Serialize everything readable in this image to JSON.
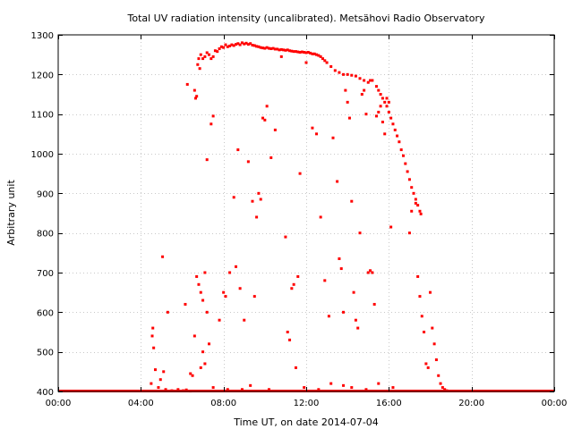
{
  "chart_data": {
    "type": "scatter",
    "title": "Total UV radiation intensity (uncalibrated). Metsähovi Radio Observatory",
    "xlabel": "Time UT, on date 2014-07-04",
    "ylabel": "Arbitrary unit",
    "xlim": [
      0,
      24
    ],
    "ylim": [
      400,
      1300
    ],
    "xticks": [
      0,
      4,
      8,
      12,
      16,
      20,
      24
    ],
    "xtick_labels": [
      "00:00",
      "04:00",
      "08:00",
      "12:00",
      "16:00",
      "20:00",
      "00:00"
    ],
    "yticks": [
      400,
      500,
      600,
      700,
      800,
      900,
      1000,
      1100,
      1200,
      1300
    ],
    "ytick_labels": [
      "400",
      "500",
      "600",
      "700",
      "800",
      "900",
      "1000",
      "1100",
      "1200",
      "1300"
    ],
    "grid": true,
    "color": "#ff0000",
    "series": [
      {
        "name": "",
        "baseline_value": 400,
        "points": [
          [
            4.55,
            540
          ],
          [
            4.58,
            560
          ],
          [
            4.62,
            510
          ],
          [
            4.7,
            455
          ],
          [
            4.95,
            430
          ],
          [
            5.05,
            740
          ],
          [
            5.1,
            450
          ],
          [
            5.3,
            600
          ],
          [
            4.5,
            420
          ],
          [
            4.85,
            410
          ],
          [
            5.2,
            405
          ],
          [
            5.5,
            402
          ],
          [
            5.8,
            405
          ],
          [
            6.05,
            402
          ],
          [
            6.2,
            404
          ],
          [
            6.4,
            401
          ],
          [
            6.15,
            620
          ],
          [
            6.25,
            1175
          ],
          [
            6.4,
            445
          ],
          [
            6.5,
            440
          ],
          [
            6.6,
            1160
          ],
          [
            6.65,
            1140
          ],
          [
            6.7,
            1145
          ],
          [
            6.75,
            1225
          ],
          [
            6.8,
            1240
          ],
          [
            6.85,
            1215
          ],
          [
            6.9,
            1250
          ],
          [
            7.0,
            1240
          ],
          [
            7.1,
            1245
          ],
          [
            7.2,
            1255
          ],
          [
            7.3,
            1250
          ],
          [
            7.4,
            1240
          ],
          [
            7.5,
            1245
          ],
          [
            7.6,
            1260
          ],
          [
            7.7,
            1258
          ],
          [
            7.8,
            1265
          ],
          [
            7.9,
            1270
          ],
          [
            8.0,
            1268
          ],
          [
            8.1,
            1275
          ],
          [
            8.2,
            1270
          ],
          [
            8.3,
            1272
          ],
          [
            8.4,
            1275
          ],
          [
            8.5,
            1273
          ],
          [
            8.6,
            1276
          ],
          [
            8.7,
            1278
          ],
          [
            8.8,
            1275
          ],
          [
            8.9,
            1280
          ],
          [
            9.0,
            1277
          ],
          [
            9.1,
            1279
          ],
          [
            9.2,
            1276
          ],
          [
            9.3,
            1278
          ],
          [
            9.4,
            1274
          ],
          [
            9.5,
            1273
          ],
          [
            9.6,
            1271
          ],
          [
            9.7,
            1270
          ],
          [
            9.8,
            1268
          ],
          [
            9.9,
            1267
          ],
          [
            10.0,
            1266
          ],
          [
            10.1,
            1268
          ],
          [
            10.2,
            1266
          ],
          [
            10.3,
            1265
          ],
          [
            10.4,
            1266
          ],
          [
            10.5,
            1264
          ],
          [
            10.6,
            1264
          ],
          [
            10.7,
            1262
          ],
          [
            10.8,
            1263
          ],
          [
            10.9,
            1262
          ],
          [
            11.0,
            1261
          ],
          [
            11.1,
            1262
          ],
          [
            11.2,
            1260
          ],
          [
            11.3,
            1259
          ],
          [
            11.4,
            1258
          ],
          [
            11.5,
            1258
          ],
          [
            11.6,
            1257
          ],
          [
            11.7,
            1256
          ],
          [
            11.8,
            1257
          ],
          [
            11.9,
            1256
          ],
          [
            12.0,
            1255
          ],
          [
            12.1,
            1256
          ],
          [
            12.2,
            1254
          ],
          [
            12.3,
            1252
          ],
          [
            12.4,
            1252
          ],
          [
            12.5,
            1250
          ],
          [
            12.6,
            1248
          ],
          [
            12.7,
            1245
          ],
          [
            12.8,
            1240
          ],
          [
            12.9,
            1235
          ],
          [
            13.0,
            1230
          ],
          [
            13.2,
            1220
          ],
          [
            13.4,
            1210
          ],
          [
            13.6,
            1205
          ],
          [
            13.8,
            1200
          ],
          [
            14.0,
            1200
          ],
          [
            14.2,
            1198
          ],
          [
            14.4,
            1196
          ],
          [
            14.6,
            1190
          ],
          [
            14.8,
            1185
          ],
          [
            15.0,
            1180
          ],
          [
            15.1,
            1185
          ],
          [
            15.2,
            1185
          ],
          [
            15.4,
            1170
          ],
          [
            15.5,
            1160
          ],
          [
            15.6,
            1150
          ],
          [
            15.7,
            1140
          ],
          [
            15.8,
            1130
          ],
          [
            15.9,
            1120
          ],
          [
            16.0,
            1105
          ],
          [
            16.1,
            1090
          ],
          [
            16.2,
            1075
          ],
          [
            16.3,
            1060
          ],
          [
            16.4,
            1045
          ],
          [
            16.5,
            1030
          ],
          [
            16.6,
            1010
          ],
          [
            16.7,
            995
          ],
          [
            16.8,
            975
          ],
          [
            16.9,
            955
          ],
          [
            17.0,
            935
          ],
          [
            17.1,
            915
          ],
          [
            17.2,
            900
          ],
          [
            17.3,
            885
          ],
          [
            17.4,
            870
          ],
          [
            17.5,
            855
          ],
          [
            17.55,
            848
          ],
          [
            6.6,
            540
          ],
          [
            6.7,
            690
          ],
          [
            6.8,
            670
          ],
          [
            6.9,
            650
          ],
          [
            7.0,
            630
          ],
          [
            7.1,
            700
          ],
          [
            7.2,
            600
          ],
          [
            7.3,
            520
          ],
          [
            7.0,
            500
          ],
          [
            7.1,
            470
          ],
          [
            6.9,
            460
          ],
          [
            7.2,
            985
          ],
          [
            7.4,
            1075
          ],
          [
            7.5,
            1095
          ],
          [
            7.8,
            580
          ],
          [
            8.0,
            650
          ],
          [
            8.1,
            640
          ],
          [
            8.3,
            700
          ],
          [
            8.5,
            890
          ],
          [
            8.6,
            715
          ],
          [
            8.7,
            1010
          ],
          [
            8.8,
            660
          ],
          [
            9.0,
            580
          ],
          [
            9.2,
            980
          ],
          [
            9.4,
            880
          ],
          [
            9.5,
            640
          ],
          [
            9.6,
            840
          ],
          [
            9.7,
            900
          ],
          [
            9.8,
            885
          ],
          [
            9.9,
            1090
          ],
          [
            10.0,
            1085
          ],
          [
            10.1,
            1120
          ],
          [
            10.3,
            990
          ],
          [
            10.5,
            1060
          ],
          [
            10.8,
            1245
          ],
          [
            11.0,
            790
          ],
          [
            11.1,
            550
          ],
          [
            11.2,
            530
          ],
          [
            11.3,
            660
          ],
          [
            11.4,
            670
          ],
          [
            11.5,
            460
          ],
          [
            11.6,
            690
          ],
          [
            11.7,
            950
          ],
          [
            12.0,
            1230
          ],
          [
            12.3,
            1065
          ],
          [
            12.5,
            1050
          ],
          [
            12.7,
            840
          ],
          [
            12.9,
            680
          ],
          [
            13.1,
            590
          ],
          [
            13.3,
            1040
          ],
          [
            13.5,
            930
          ],
          [
            13.6,
            735
          ],
          [
            13.7,
            710
          ],
          [
            13.8,
            600
          ],
          [
            13.9,
            1160
          ],
          [
            14.0,
            1130
          ],
          [
            14.1,
            1090
          ],
          [
            14.2,
            880
          ],
          [
            14.3,
            650
          ],
          [
            14.4,
            580
          ],
          [
            14.5,
            560
          ],
          [
            14.6,
            800
          ],
          [
            14.7,
            1150
          ],
          [
            14.8,
            1160
          ],
          [
            14.9,
            1100
          ],
          [
            15.0,
            700
          ],
          [
            15.1,
            705
          ],
          [
            15.2,
            700
          ],
          [
            15.3,
            620
          ],
          [
            15.4,
            1095
          ],
          [
            15.5,
            1105
          ],
          [
            15.6,
            1120
          ],
          [
            15.7,
            1080
          ],
          [
            15.8,
            1050
          ],
          [
            15.9,
            1140
          ],
          [
            16.0,
            1130
          ],
          [
            16.1,
            815
          ],
          [
            17.0,
            800
          ],
          [
            17.1,
            855
          ],
          [
            17.3,
            875
          ],
          [
            17.4,
            690
          ],
          [
            17.5,
            640
          ],
          [
            17.6,
            590
          ],
          [
            17.7,
            550
          ],
          [
            17.8,
            470
          ],
          [
            17.9,
            460
          ],
          [
            18.0,
            650
          ],
          [
            18.1,
            560
          ],
          [
            18.2,
            520
          ],
          [
            18.3,
            480
          ],
          [
            18.4,
            440
          ],
          [
            18.5,
            420
          ],
          [
            18.6,
            410
          ],
          [
            18.7,
            405
          ],
          [
            18.8,
            402
          ],
          [
            7.5,
            410
          ],
          [
            8.2,
            405
          ],
          [
            8.9,
            405
          ],
          [
            9.3,
            415
          ],
          [
            10.2,
            405
          ],
          [
            11.9,
            410
          ],
          [
            12.6,
            405
          ],
          [
            13.2,
            420
          ],
          [
            13.8,
            415
          ],
          [
            14.2,
            410
          ],
          [
            14.9,
            405
          ],
          [
            15.5,
            420
          ],
          [
            16.2,
            410
          ]
        ]
      }
    ]
  }
}
